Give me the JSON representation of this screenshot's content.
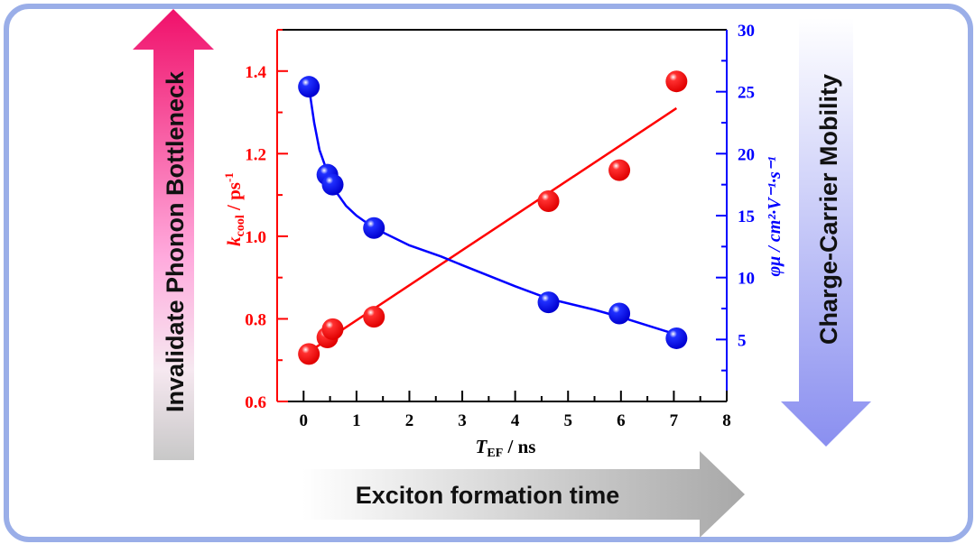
{
  "arrows": {
    "left": "Invalidate Phonon Bottleneck",
    "right": "Charge-Carrier Mobility",
    "bottom": "Exciton formation time"
  },
  "chart_data": {
    "type": "scatter",
    "xlabel": {
      "main": "T",
      "sub": "EF",
      "unit": " / ns"
    },
    "ylabel_left": {
      "main": "k",
      "sub": "cool",
      "unit": " / ps",
      "sup": "-1"
    },
    "ylabel_right": "φμ / cm²·V⁻¹·s⁻¹",
    "xlim": [
      -0.5,
      8
    ],
    "ylim_left": [
      0.6,
      1.5
    ],
    "ylim_right": [
      0,
      30
    ],
    "xticks": [
      "0",
      "1",
      "2",
      "3",
      "4",
      "5",
      "6",
      "7",
      "8"
    ],
    "yticks_left": [
      "0.6",
      "0.8",
      "1.0",
      "1.2",
      "1.4"
    ],
    "yticks_right": [
      "5",
      "10",
      "15",
      "20",
      "25",
      "30"
    ],
    "colors": {
      "left": "#ff0000",
      "right": "#0000ff"
    },
    "series": [
      {
        "axis": "left",
        "color": "#ff0000",
        "x": [
          0.1,
          0.45,
          0.55,
          1.33,
          4.63,
          5.97,
          7.05
        ],
        "y": [
          0.715,
          0.755,
          0.775,
          0.805,
          1.085,
          1.16,
          1.375
        ],
        "fit": {
          "x": [
            0.1,
            7.05
          ],
          "y": [
            0.72,
            1.31
          ]
        }
      },
      {
        "axis": "right",
        "color": "#0000ff",
        "x": [
          0.1,
          0.45,
          0.55,
          1.33,
          4.63,
          5.97,
          7.05
        ],
        "y": [
          25.4,
          18.3,
          17.5,
          14.0,
          8.0,
          7.1,
          5.1
        ],
        "fit": {
          "x": [
            0.1,
            0.2,
            0.3,
            0.45,
            0.6,
            0.8,
            1.0,
            1.33,
            2,
            2.6,
            3,
            4,
            4.63,
            5.5,
            6,
            7.05
          ],
          "y": [
            25.4,
            22.5,
            20.3,
            18.5,
            17.0,
            15.8,
            15.0,
            14.0,
            12.6,
            11.7,
            11.0,
            9.3,
            8.3,
            7.4,
            6.8,
            5.4
          ]
        }
      }
    ]
  }
}
